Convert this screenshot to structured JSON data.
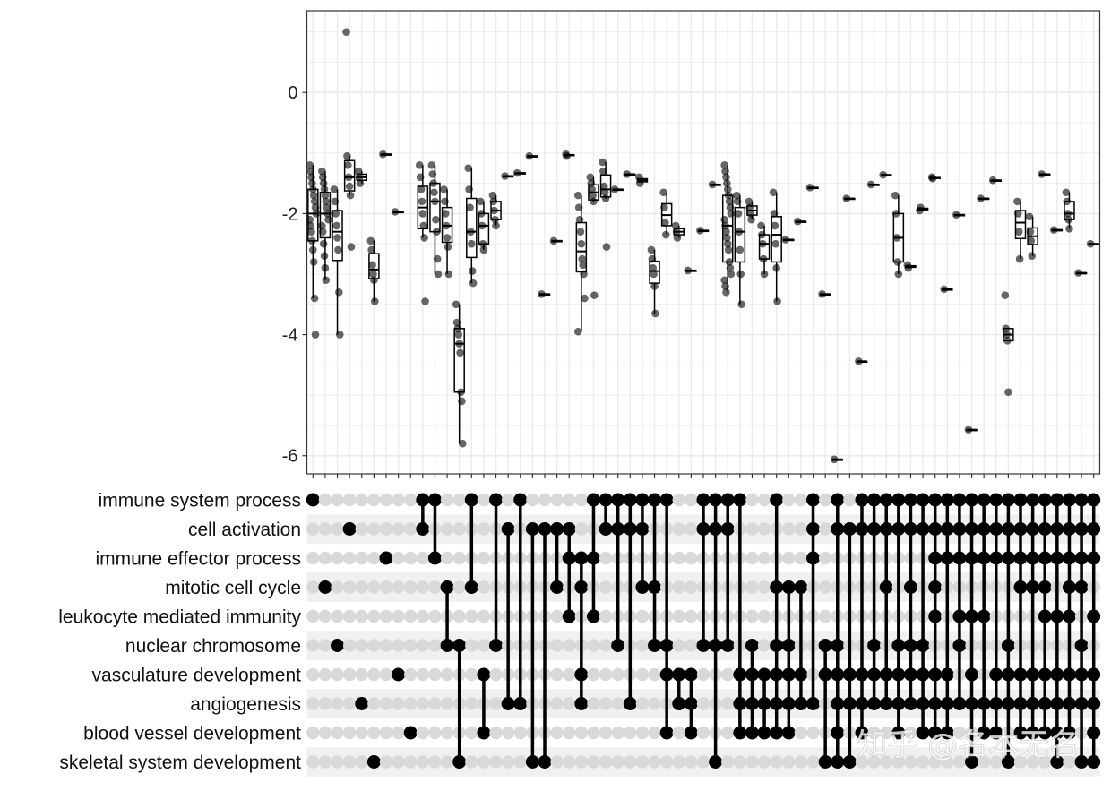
{
  "chart_data": {
    "type": "upset",
    "y_ticks": [
      0,
      -2,
      -4,
      -6
    ],
    "y_tick_labels": [
      "0",
      "-2",
      "-4",
      "-6"
    ],
    "ylim": [
      -6.3,
      1.35
    ],
    "grid": true,
    "sets": [
      "immune system process",
      "cell activation",
      "immune effector process",
      "mitotic cell cycle",
      "leukocyte mediated immunity",
      "nuclear chromosome",
      "vasculature development",
      "angiogenesis",
      "blood vessel development",
      "skeletal system development"
    ],
    "intersections": [
      {
        "sets": [
          0
        ],
        "values": [
          -1.2,
          -1.3,
          -1.4,
          -1.5,
          -1.6,
          -1.7,
          -1.8,
          -1.9,
          -2.0,
          -2.1,
          -2.2,
          -2.3,
          -2.45,
          -2.6,
          -2.8,
          -3.4,
          -4.0
        ]
      },
      {
        "sets": [
          3
        ],
        "values": [
          -1.3,
          -1.4,
          -1.5,
          -1.6,
          -1.7,
          -1.8,
          -1.9,
          -2.0,
          -2.1,
          -2.2,
          -2.3,
          -2.5,
          -2.7,
          -2.9,
          -3.1
        ]
      },
      {
        "sets": [
          5
        ],
        "values": [
          -1.6,
          -1.8,
          -2.0,
          -2.2,
          -2.4,
          -2.6,
          -3.3,
          -4.0
        ]
      },
      {
        "sets": [
          1
        ],
        "values": [
          1.0,
          -1.05,
          -1.2,
          -1.4,
          -1.55,
          -1.7,
          -2.55
        ]
      },
      {
        "sets": [
          7
        ],
        "values": [
          -1.3,
          -1.4,
          -1.5
        ]
      },
      {
        "sets": [
          9
        ],
        "values": [
          -2.45,
          -2.6,
          -2.85,
          -3.0,
          -3.1,
          -3.45
        ]
      },
      {
        "sets": [
          2
        ],
        "values": [
          -1.02
        ]
      },
      {
        "sets": [
          6
        ],
        "values": [
          -1.97
        ]
      },
      {
        "sets": [
          8
        ],
        "values": []
      },
      {
        "sets": [
          0,
          1
        ],
        "values": [
          -1.2,
          -1.4,
          -1.6,
          -1.8,
          -2.0,
          -2.2,
          -2.4,
          -3.45
        ]
      },
      {
        "sets": [
          0,
          2
        ],
        "values": [
          -1.2,
          -1.35,
          -1.5,
          -1.65,
          -1.8,
          -2.1,
          -2.3,
          -2.75,
          -3.0
        ]
      },
      {
        "sets": [
          3,
          5
        ],
        "values": [
          -1.6,
          -1.8,
          -2.0,
          -2.2,
          -2.4,
          -2.55,
          -3.0
        ]
      },
      {
        "sets": [
          5,
          9
        ],
        "values": [
          -3.5,
          -3.8,
          -3.9,
          -4.0,
          -4.15,
          -4.3,
          -4.95,
          -5.1,
          -5.8
        ]
      },
      {
        "sets": [
          0,
          3
        ],
        "values": [
          -1.25,
          -1.6,
          -1.9,
          -2.3,
          -2.5,
          -2.95,
          -3.15
        ]
      },
      {
        "sets": [
          6,
          8
        ],
        "values": [
          -1.8,
          -2.0,
          -2.2,
          -2.5,
          -2.6
        ]
      },
      {
        "sets": [
          0,
          5
        ],
        "values": [
          -1.7,
          -1.8,
          -1.95,
          -2.1,
          -2.2
        ]
      },
      {
        "sets": [
          1,
          7
        ],
        "values": [
          -1.38
        ]
      },
      {
        "sets": [
          0,
          7
        ],
        "values": [
          -1.33
        ]
      },
      {
        "sets": [
          1,
          9
        ],
        "values": [
          -1.05
        ]
      },
      {
        "sets": [
          1,
          9
        ],
        "values": [
          -3.33
        ]
      },
      {
        "sets": [
          1,
          3
        ],
        "values": [
          -2.45
        ]
      },
      {
        "sets": [
          1,
          2,
          4
        ],
        "values": [
          -1.02,
          -1.05
        ]
      },
      {
        "sets": [
          2,
          3,
          6,
          7
        ],
        "values": [
          -1.7,
          -1.9,
          -2.1,
          -2.3,
          -2.5,
          -2.75,
          -2.85,
          -3.0,
          -3.4,
          -3.95
        ]
      },
      {
        "sets": [
          0,
          2,
          4
        ],
        "values": [
          -1.4,
          -1.5,
          -1.6,
          -1.7,
          -1.8,
          -3.35
        ]
      },
      {
        "sets": [
          0,
          1
        ],
        "values": [
          -1.15,
          -1.3,
          -1.55,
          -1.65,
          -1.75,
          -2.55
        ]
      },
      {
        "sets": [
          0,
          1,
          5
        ],
        "values": [
          -1.6
        ]
      },
      {
        "sets": [
          0,
          1,
          7
        ],
        "values": [
          -1.35
        ]
      },
      {
        "sets": [
          0,
          1,
          3
        ],
        "values": [
          -1.4,
          -1.5
        ]
      },
      {
        "sets": [
          0,
          3,
          5
        ],
        "values": [
          -2.6,
          -2.75,
          -2.9,
          -3.0,
          -3.2,
          -3.65
        ]
      },
      {
        "sets": [
          0,
          5,
          6,
          8
        ],
        "values": [
          -1.65,
          -1.9,
          -2.15,
          -2.35
        ]
      },
      {
        "sets": [
          6,
          7
        ],
        "values": [
          -2.2,
          -2.3,
          -2.4
        ]
      },
      {
        "sets": [
          6,
          7,
          8
        ],
        "values": [
          -2.94
        ]
      },
      {
        "sets": [
          0,
          1,
          5
        ],
        "values": [
          -2.28
        ]
      },
      {
        "sets": [
          0,
          1,
          5,
          9
        ],
        "values": [
          -1.52
        ]
      },
      {
        "sets": [
          0,
          1,
          5
        ],
        "values": [
          -1.2,
          -1.3,
          -1.4,
          -1.5,
          -1.6,
          -1.7,
          -1.8,
          -1.9,
          -2.0,
          -2.1,
          -2.2,
          -2.3,
          -2.4,
          -2.5,
          -2.6,
          -2.8,
          -2.9,
          -3.0,
          -3.1,
          -3.2,
          -3.3
        ]
      },
      {
        "sets": [
          0,
          6,
          7,
          8
        ],
        "values": [
          -1.7,
          -1.8,
          -2.0,
          -2.3,
          -2.6,
          -3.0,
          -3.5
        ]
      },
      {
        "sets": [
          5,
          6,
          7,
          8
        ],
        "values": [
          -1.8,
          -1.9,
          -2.0,
          -2.1
        ]
      },
      {
        "sets": [
          6,
          7,
          8
        ],
        "values": [
          -2.2,
          -2.35,
          -2.5,
          -2.75,
          -3.0
        ]
      },
      {
        "sets": [
          0,
          3,
          5,
          6,
          7,
          8
        ],
        "values": [
          -1.65,
          -2.0,
          -2.2,
          -2.5,
          -2.9,
          -3.45
        ]
      },
      {
        "sets": [
          3,
          5,
          6,
          7,
          8
        ],
        "values": [
          -2.43
        ]
      },
      {
        "sets": [
          3,
          6,
          7
        ],
        "values": [
          -2.13
        ]
      },
      {
        "sets": [
          0,
          1,
          2,
          7
        ],
        "values": [
          -1.57
        ]
      },
      {
        "sets": [
          5,
          6,
          9
        ],
        "values": [
          -3.33
        ]
      },
      {
        "sets": [
          0,
          1,
          5,
          6,
          7,
          8,
          9
        ],
        "values": [
          -6.06
        ]
      },
      {
        "sets": [
          1,
          6,
          7,
          9
        ],
        "values": [
          -1.75
        ]
      },
      {
        "sets": [
          0,
          1,
          6,
          7,
          8
        ],
        "values": [
          -4.44
        ]
      },
      {
        "sets": [
          0,
          1,
          5,
          6,
          7
        ],
        "values": [
          -1.52
        ]
      },
      {
        "sets": [
          0,
          1,
          3,
          6,
          7
        ],
        "values": [
          -1.36
        ]
      },
      {
        "sets": [
          0,
          1,
          5,
          6,
          7,
          8
        ],
        "values": [
          -1.7,
          -2.0,
          -2.4,
          -2.8,
          -3.0
        ]
      },
      {
        "sets": [
          0,
          1,
          3,
          5,
          6,
          7
        ],
        "values": [
          -2.85,
          -2.9
        ]
      },
      {
        "sets": [
          0,
          1,
          5,
          6,
          7,
          8
        ],
        "values": [
          -1.95,
          -1.9
        ]
      },
      {
        "sets": [
          0,
          1,
          2,
          3,
          4,
          6,
          7,
          8
        ],
        "values": [
          -1.4,
          -1.42
        ]
      },
      {
        "sets": [
          0,
          1,
          2,
          6,
          7,
          8
        ],
        "values": [
          -3.25
        ]
      },
      {
        "sets": [
          0,
          1,
          2,
          4,
          5,
          7
        ],
        "values": [
          -2.02
        ]
      },
      {
        "sets": [
          0,
          1,
          2,
          4,
          6,
          7,
          9
        ],
        "values": [
          -5.57
        ]
      },
      {
        "sets": [
          0,
          1,
          2,
          4,
          7,
          8
        ],
        "values": [
          -1.75
        ]
      },
      {
        "sets": [
          0,
          1,
          2,
          6,
          7,
          8
        ],
        "values": [
          -1.45
        ]
      },
      {
        "sets": [
          0,
          1,
          2,
          5,
          6,
          7,
          9
        ],
        "values": [
          -3.35,
          -3.9,
          -4.0,
          -4.1,
          -4.95
        ]
      },
      {
        "sets": [
          0,
          1,
          2,
          3,
          6,
          7,
          8
        ],
        "values": [
          -1.8,
          -2.0,
          -2.3,
          -2.75
        ]
      },
      {
        "sets": [
          0,
          1,
          2,
          3,
          6,
          7,
          8
        ],
        "values": [
          -2.05,
          -2.3,
          -2.45,
          -2.7
        ]
      },
      {
        "sets": [
          0,
          1,
          2,
          3,
          4,
          6,
          7,
          8
        ],
        "values": [
          -1.35
        ]
      },
      {
        "sets": [
          0,
          1,
          2,
          4,
          6,
          7,
          8,
          9
        ],
        "values": [
          -2.27
        ]
      },
      {
        "sets": [
          0,
          1,
          2,
          3,
          4,
          6,
          7,
          8
        ],
        "values": [
          -1.65,
          -1.8,
          -2.0,
          -2.1,
          -2.25
        ]
      },
      {
        "sets": [
          0,
          1,
          2,
          3,
          5,
          6,
          7,
          9
        ],
        "values": [
          -2.98
        ]
      },
      {
        "sets": [
          0,
          1,
          2,
          4,
          6,
          7,
          8,
          9
        ],
        "values": [
          -2.5
        ]
      }
    ]
  },
  "watermark": "知乎 @名本无名",
  "colors": {
    "panel_border": "#333333",
    "grid": "#ebebeb",
    "active_dot": "#000000",
    "inactive_dot": "#d9d9d9",
    "stripe": "#f0f0f0",
    "point": "#000000"
  }
}
